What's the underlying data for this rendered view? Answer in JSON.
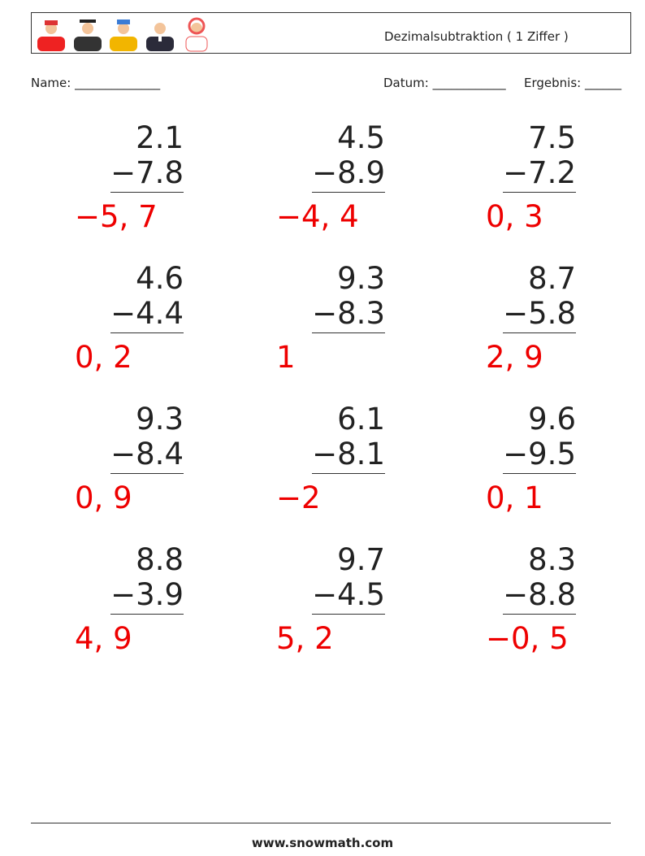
{
  "header": {
    "title": "Dezimalsubtraktion ( 1 Ziffer )"
  },
  "fields": {
    "name": "Name: ______________",
    "date": "Datum: ____________",
    "result": "Ergebnis: ______"
  },
  "problems": [
    {
      "top": "2.1",
      "bottom": "−7.8",
      "answer": "−5, 7"
    },
    {
      "top": "4.5",
      "bottom": "−8.9",
      "answer": "−4, 4"
    },
    {
      "top": "7.5",
      "bottom": "−7.2",
      "answer": "0, 3"
    },
    {
      "top": "4.6",
      "bottom": "−4.4",
      "answer": "0, 2"
    },
    {
      "top": "9.3",
      "bottom": "−8.3",
      "answer": "1"
    },
    {
      "top": "8.7",
      "bottom": "−5.8",
      "answer": "2, 9"
    },
    {
      "top": "9.3",
      "bottom": "−8.4",
      "answer": "0, 9"
    },
    {
      "top": "6.1",
      "bottom": "−8.1",
      "answer": "−2"
    },
    {
      "top": "9.6",
      "bottom": "−9.5",
      "answer": "0, 1"
    },
    {
      "top": "8.8",
      "bottom": "−3.9",
      "answer": "4, 9"
    },
    {
      "top": "9.7",
      "bottom": "−4.5",
      "answer": "5, 2"
    },
    {
      "top": "8.3",
      "bottom": "−8.8",
      "answer": "−0, 5"
    }
  ],
  "footer": {
    "site": "www.snowmath.com"
  }
}
